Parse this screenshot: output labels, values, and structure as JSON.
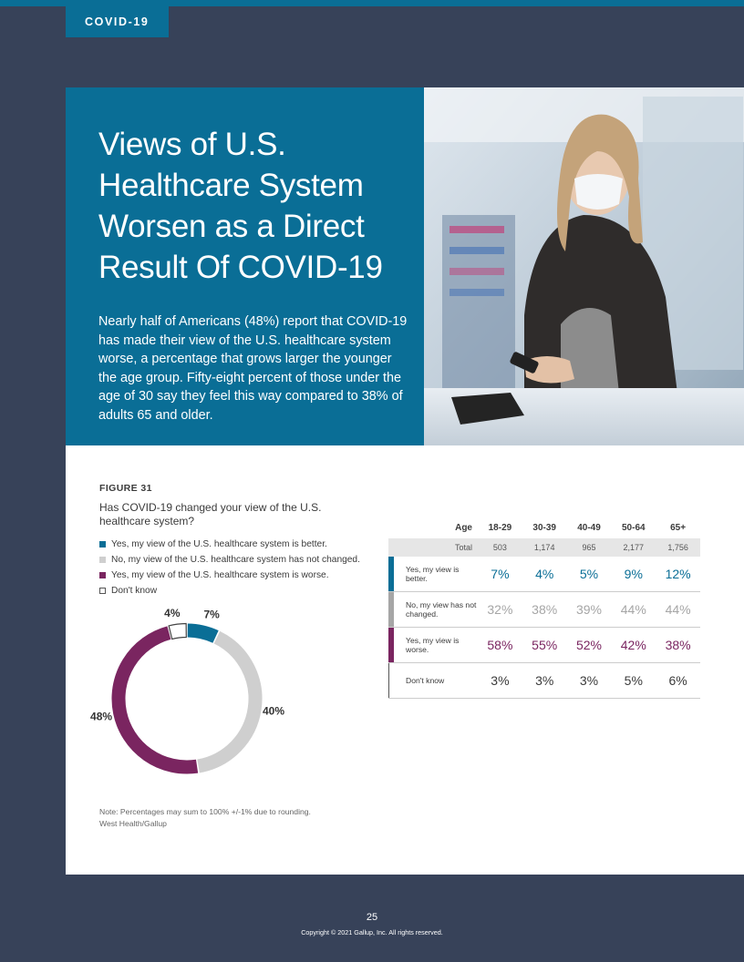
{
  "section_tag": "COVID-19",
  "hero": {
    "title": "Views of U.S. Healthcare System Worsen as a Direct Result Of COVID-19",
    "body": "Nearly half of Americans (48%) report that COVID-19 has made their view of the U.S. healthcare system worse, a percentage that grows larger the younger the age group. Fifty-eight percent of those under the age of 30 say they feel this way compared to 38% of adults 65 and older."
  },
  "figure": {
    "label": "FIGURE 31",
    "question": "Has COVID-19 changed your view of the U.S. healthcare system?",
    "legend": [
      {
        "label": "Yes, my view of the U.S. healthcare system is better.",
        "color": "#0a6e96"
      },
      {
        "label": "No, my view of the U.S. healthcare system has not changed.",
        "color": "#cfcfcf"
      },
      {
        "label": "Yes, my view of the U.S. healthcare system is worse.",
        "color": "#7a2560"
      },
      {
        "label": "Don't know",
        "color": "#ffffff"
      }
    ],
    "footnote": [
      "Note: Percentages may sum to 100% +/-1% due to rounding.",
      "West Health/Gallup"
    ]
  },
  "chart_data": {
    "type": "pie",
    "categories": [
      "Yes, my view of the U.S. healthcare system is better.",
      "No, my view of the U.S. healthcare system has not changed.",
      "Yes, my view of the U.S. healthcare system is worse.",
      "Don't know"
    ],
    "values": [
      7,
      40,
      48,
      4
    ],
    "labels": [
      "7%",
      "40%",
      "48%",
      "4%"
    ],
    "colors": [
      "#0a6e96",
      "#cfcfcf",
      "#7a2560",
      "#ffffff"
    ]
  },
  "table": {
    "age_label": "Age",
    "total_label": "Total",
    "columns": [
      "18-29",
      "30-39",
      "40-49",
      "50-64",
      "65+"
    ],
    "totals": [
      "503",
      "1,174",
      "965",
      "2,177",
      "1,756"
    ],
    "rows": [
      {
        "label": "Yes, my view is better.",
        "values": [
          "7%",
          "4%",
          "5%",
          "9%",
          "12%"
        ],
        "color": "#0a6e96"
      },
      {
        "label": "No, my view has not changed.",
        "values": [
          "32%",
          "38%",
          "39%",
          "44%",
          "44%"
        ],
        "color": "#a6a6a6"
      },
      {
        "label": "Yes, my view is worse.",
        "values": [
          "58%",
          "55%",
          "52%",
          "42%",
          "38%"
        ],
        "color": "#7a2560"
      },
      {
        "label": "Don't know",
        "values": [
          "3%",
          "3%",
          "3%",
          "5%",
          "6%"
        ],
        "color": "#3b3b3b"
      }
    ]
  },
  "footer": {
    "page_number": "25",
    "copyright": "Copyright © 2021 Gallup, Inc. All rights reserved."
  }
}
